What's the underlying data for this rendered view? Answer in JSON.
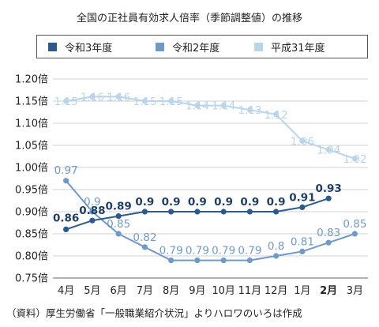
{
  "title": "全国の正社員有効求人倍率（季節調整値）の推移",
  "source": "（資料）厚生労働省「一般職業紹介状況」よりハロワのいろは作成",
  "chart_data": {
    "type": "line",
    "categories": [
      "4月",
      "5月",
      "6月",
      "7月",
      "8月",
      "9月",
      "10月",
      "11月",
      "12月",
      "1月",
      "2月",
      "3月"
    ],
    "highlight_category": "2月",
    "ylim": [
      0.75,
      1.2
    ],
    "yticks": [
      "1.20倍",
      "1.15倍",
      "1.10倍",
      "1.05倍",
      "1.00倍",
      "0.95倍",
      "0.90倍",
      "0.85倍",
      "0.80倍",
      "0.75倍"
    ],
    "grid": true,
    "legend_position": "top",
    "series": [
      {
        "name": "令和3年度",
        "color": "#2a5b8c",
        "values": [
          0.86,
          0.88,
          0.89,
          0.9,
          0.9,
          0.9,
          0.9,
          0.9,
          0.9,
          0.91,
          0.93,
          null
        ],
        "labels": [
          "0.86",
          "0.88",
          "0.89",
          "0.9",
          "0.9",
          "0.9",
          "0.9",
          "0.9",
          "0.9",
          "0.91",
          "0.93",
          ""
        ]
      },
      {
        "name": "令和2年度",
        "color": "#6f9ac8",
        "values": [
          0.97,
          0.9,
          0.85,
          0.82,
          0.79,
          0.79,
          0.79,
          0.79,
          0.8,
          0.81,
          0.83,
          0.85
        ],
        "labels": [
          "0.97",
          "0.9",
          "0.85",
          "0.82",
          "0.79",
          "0.79",
          "0.79",
          "0.79",
          "0.8",
          "0.81",
          "0.83",
          "0.85"
        ]
      },
      {
        "name": "平成31年度",
        "color": "#b9d5ea",
        "values": [
          1.15,
          1.16,
          1.16,
          1.15,
          1.15,
          1.14,
          1.14,
          1.13,
          1.12,
          1.06,
          1.04,
          1.02
        ],
        "labels": [
          "1.15",
          "1.16",
          "1.16",
          "1.15",
          "1.15",
          "1.14",
          "1.14",
          "1.13",
          "1.12",
          "1.06",
          "1.04",
          "1.02"
        ]
      }
    ]
  }
}
